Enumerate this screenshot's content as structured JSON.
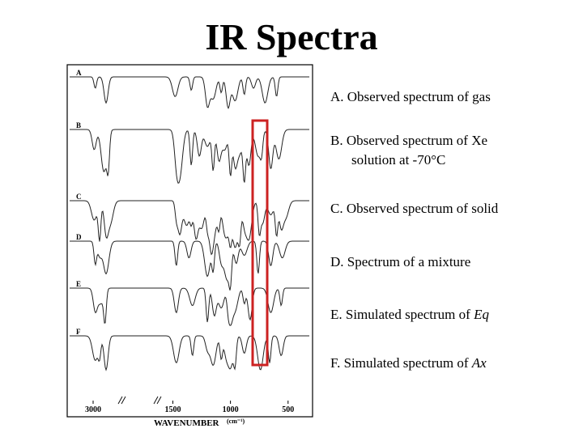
{
  "page": {
    "title": "IR Spectra"
  },
  "legend": [
    {
      "letter": "A",
      "text": "A. Observed spectrum of gas",
      "line2": "",
      "italic": ""
    },
    {
      "letter": "B",
      "text": "B. Observed spectrum of Xe",
      "line2": "solution at -70°C",
      "italic": ""
    },
    {
      "letter": "C",
      "text": "C. Observed spectrum of solid",
      "line2": "",
      "italic": ""
    },
    {
      "letter": "D",
      "text": "D. Spectrum of a mixture",
      "line2": "",
      "italic": ""
    },
    {
      "letter": "E",
      "text": "E. Simulated spectrum of ",
      "line2": "",
      "italic": "Eq"
    },
    {
      "letter": "F",
      "text": "F. Simulated spectrum of ",
      "line2": "",
      "italic": "Ax"
    }
  ],
  "chart_data": {
    "type": "line",
    "title": "",
    "xlabel": "WAVENUMBER",
    "xlabel_unit": "(cm⁻¹)",
    "x_ticks": [
      3000,
      1500,
      1000,
      500
    ],
    "x_axis_break": true,
    "y_axis": "stacked transmittance (no scale printed)",
    "grid": false,
    "highlight": {
      "color": "#cc2222",
      "x_range_cm1": [
        780,
        700
      ]
    },
    "series": [
      {
        "name": "A",
        "bands_cm1": [
          2980,
          2880,
          1480,
          1340,
          1200,
          1150,
          1080,
          1020,
          960,
          880,
          800,
          700,
          600
        ]
      },
      {
        "name": "B",
        "bands_cm1": [
          2990,
          2900,
          2860,
          1470,
          1440,
          1340,
          1270,
          1200,
          1150,
          1100,
          1050,
          1000,
          960,
          920,
          880,
          840,
          760,
          730,
          650,
          580
        ]
      },
      {
        "name": "C",
        "bands_cm1": [
          2990,
          2940,
          2880,
          2840,
          1470,
          1440,
          1380,
          1340,
          1300,
          1250,
          1200,
          1170,
          1140,
          1100,
          1060,
          1030,
          1000,
          970,
          950,
          920,
          880,
          840,
          750,
          720,
          650,
          600,
          560,
          520
        ]
      },
      {
        "name": "D",
        "bands_cm1": [
          2980,
          2940,
          2880,
          1470,
          1360,
          1200,
          1150,
          1080,
          1030,
          1000,
          950,
          880,
          760,
          650,
          550
        ]
      },
      {
        "name": "E",
        "bands_cm1": [
          2980,
          2930,
          2890,
          1470,
          1330,
          1200,
          1140,
          1080,
          1020,
          1000,
          960,
          880,
          830,
          650,
          560
        ]
      },
      {
        "name": "F",
        "bands_cm1": [
          2980,
          2940,
          2880,
          1470,
          1330,
          1200,
          1150,
          1080,
          1040,
          1000,
          960,
          880,
          740,
          660,
          560
        ]
      }
    ],
    "colors": {
      "trace": "#222222",
      "frame": "#000000"
    }
  }
}
